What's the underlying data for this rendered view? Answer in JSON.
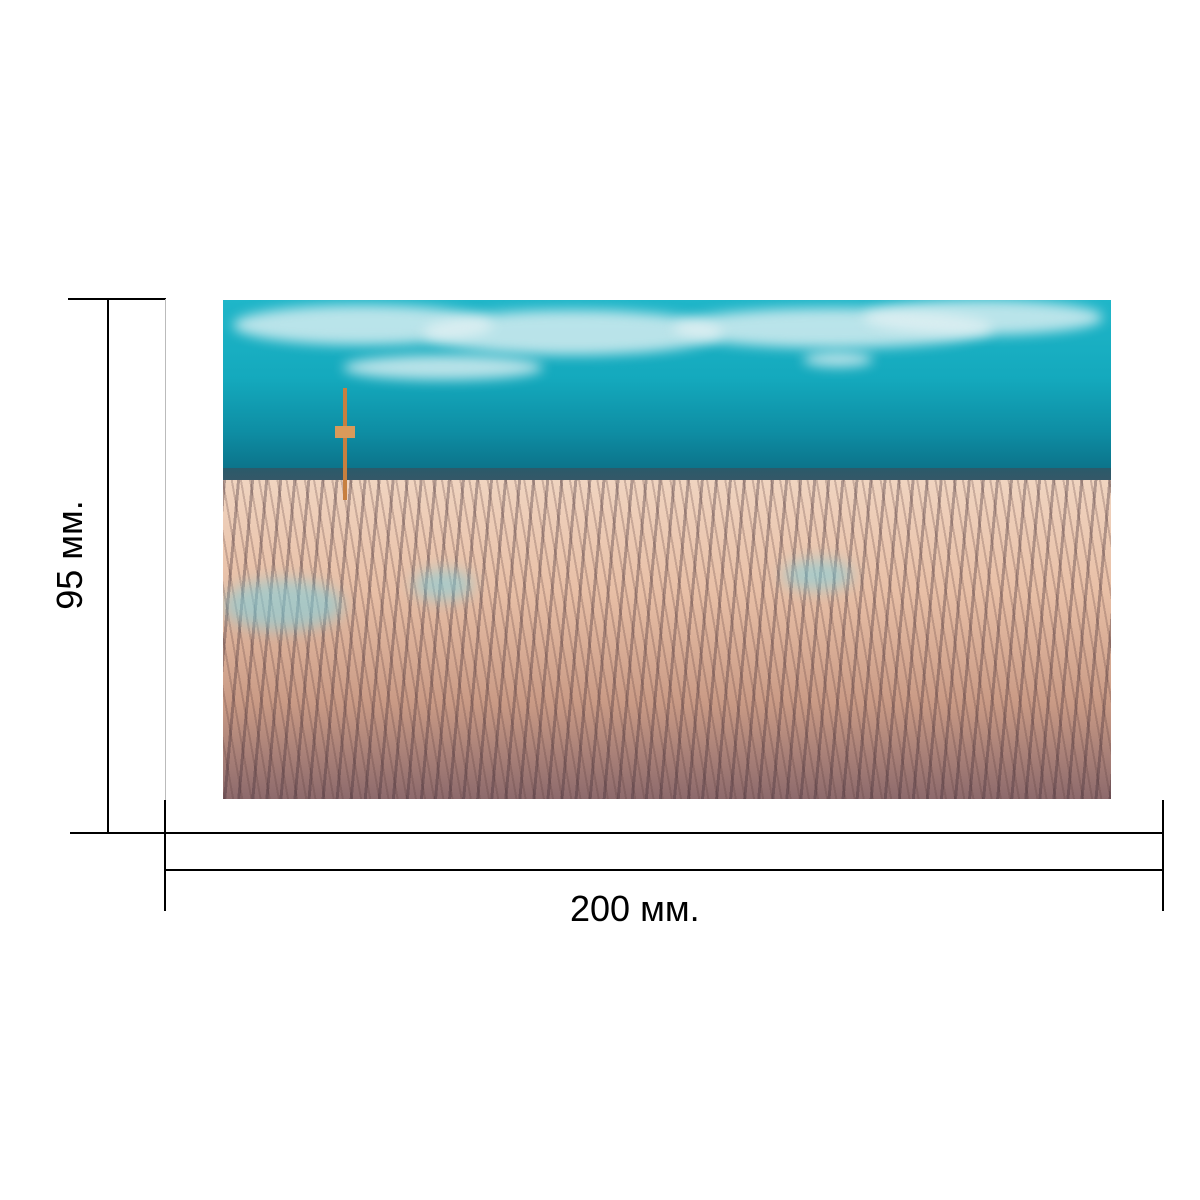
{
  "dimensions": {
    "width_label": "200 мм.",
    "height_label": "95 мм."
  },
  "photo": {
    "subject": "snowy-forest-landscape-with-tower",
    "colors": {
      "sky": "#14a9bd",
      "forest": "#e8bfa6"
    }
  }
}
